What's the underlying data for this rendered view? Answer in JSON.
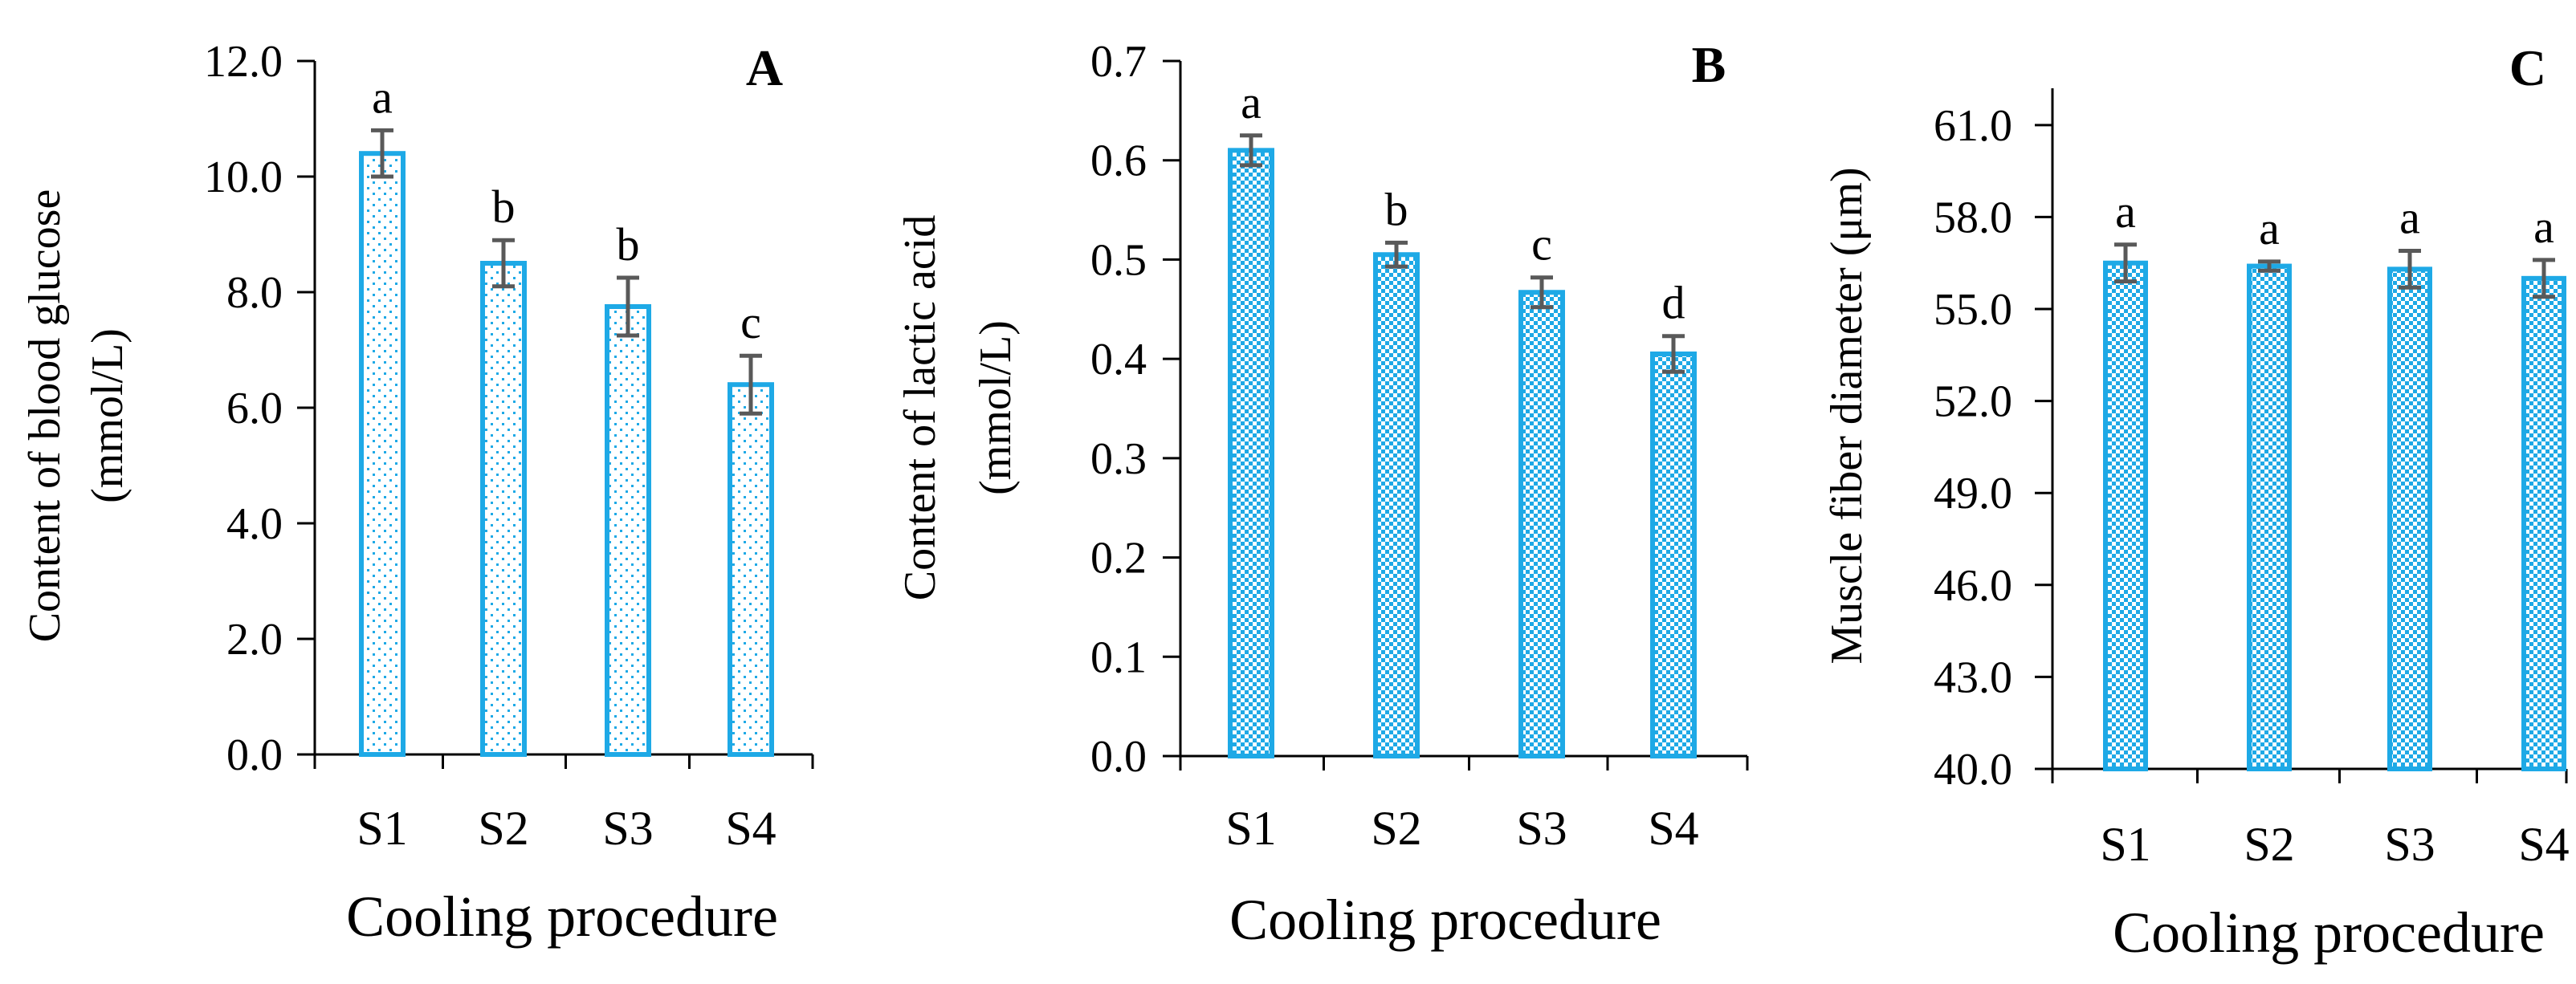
{
  "chart_data": [
    {
      "panel": "A",
      "type": "bar",
      "pattern": "dots",
      "categories": [
        "S1",
        "S2",
        "S3",
        "S4"
      ],
      "values": [
        10.4,
        8.5,
        7.75,
        6.4
      ],
      "errors": [
        0.4,
        0.4,
        0.5,
        0.5
      ],
      "significance": [
        "a",
        "b",
        "b",
        "c"
      ],
      "ylabel_lines": [
        "Content of blood glucose",
        "(mmol/L)"
      ],
      "xlabel": "Cooling procedure",
      "ylim": [
        0,
        12
      ],
      "ticks": [
        0,
        2,
        4,
        6,
        8,
        10,
        12
      ],
      "tick_labels": [
        "0.0",
        "2.0",
        "4.0",
        "6.0",
        "8.0",
        "10.0",
        "12.0"
      ]
    },
    {
      "panel": "B",
      "type": "bar",
      "pattern": "checker",
      "categories": [
        "S1",
        "S2",
        "S3",
        "S4"
      ],
      "values": [
        0.61,
        0.505,
        0.467,
        0.405
      ],
      "errors": [
        0.015,
        0.012,
        0.015,
        0.018
      ],
      "significance": [
        "a",
        "b",
        "c",
        "d"
      ],
      "ylabel_lines": [
        "Content of  lactic acid",
        "(mmol/L)"
      ],
      "xlabel": "Cooling procedure",
      "ylim": [
        0,
        0.7
      ],
      "ticks": [
        0,
        0.1,
        0.2,
        0.3,
        0.4,
        0.5,
        0.6,
        0.7
      ],
      "tick_labels": [
        "0.0",
        "0.1",
        "0.2",
        "0.3",
        "0.4",
        "0.5",
        "0.6",
        "0.7"
      ]
    },
    {
      "panel": "C",
      "type": "bar",
      "pattern": "checker",
      "categories": [
        "S1",
        "S2",
        "S3",
        "S4"
      ],
      "values": [
        56.5,
        56.4,
        56.3,
        56.0
      ],
      "errors": [
        0.6,
        0.15,
        0.6,
        0.6
      ],
      "significance": [
        "a",
        "a",
        "a",
        "a"
      ],
      "ylabel_lines": [
        "Muscle fiber diameter (μm)"
      ],
      "xlabel": "Cooling procedure",
      "ylim": [
        40,
        62.2
      ],
      "ticks": [
        40,
        43,
        46,
        49,
        52,
        55,
        58,
        61
      ],
      "tick_labels": [
        "40.0",
        "43.0",
        "46.0",
        "49.0",
        "52.0",
        "55.0",
        "58.0",
        "61.0"
      ]
    }
  ],
  "colors": {
    "bar_stroke": "#1ea9e6",
    "bar_pattern": "#1ea9e6",
    "error_bar": "#595959",
    "axis": "#000000"
  }
}
